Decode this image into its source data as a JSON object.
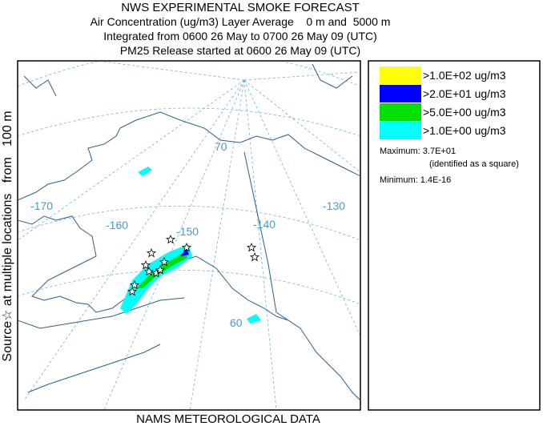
{
  "header": {
    "title": "NWS EXPERIMENTAL SMOKE FORECAST",
    "line1": "Air Concentration (ug/m3) Layer Average    0 m and  5000 m",
    "line2": "Integrated from 0600 26 May to 0700 26 May 09 (UTC)",
    "line3": "PM25 Release started at 0600 26 May 09 (UTC)"
  },
  "side_label": "Source☆ at multiple locations   from   100 m",
  "footer": "NAMS METEOROLOGICAL DATA",
  "legend": {
    "entries": [
      {
        "label": ">1.0E+02 ug/m3",
        "color": "#ffff00"
      },
      {
        "label": ">2.0E+01 ug/m3",
        "color": "#0000ff"
      },
      {
        "label": ">5.0E+00 ug/m3",
        "color": "#00e000"
      },
      {
        "label": ">1.0E+00 ug/m3",
        "color": "#00ffff"
      }
    ],
    "maximum": "Maximum: 3.7E+01",
    "identified": "(identified as a square)",
    "minimum": "Minimum: 1.4E-16"
  },
  "map": {
    "labels": [
      "-170",
      "-160",
      "-150",
      "-140",
      "-130",
      "70",
      "60"
    ]
  }
}
